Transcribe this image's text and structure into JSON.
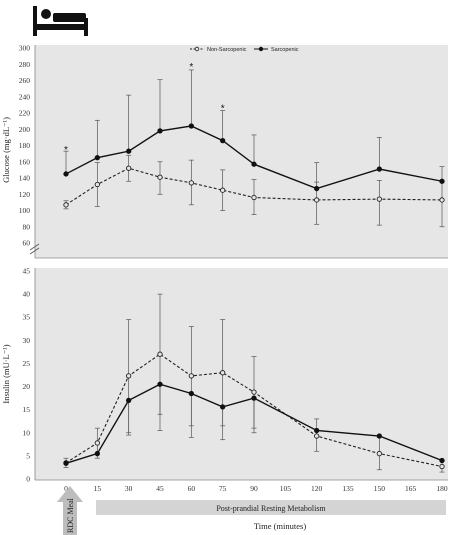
{
  "chart_data": [
    {
      "type": "line",
      "ylabel": "Glucose (mg·dL⁻¹)",
      "xlabel": "",
      "ylim": [
        60,
        300
      ],
      "yticks": [
        60,
        80,
        100,
        120,
        140,
        160,
        180,
        200,
        220,
        240,
        260,
        280,
        300
      ],
      "axis_break": true,
      "x": [
        0,
        15,
        30,
        45,
        60,
        75,
        90,
        120,
        150,
        180
      ],
      "legend_position": "top-center",
      "grid": false,
      "series": [
        {
          "name": "Non-Sarcopenic",
          "style": "dashed",
          "marker": "open-circle",
          "color": "#222222",
          "values": [
            107,
            132,
            152,
            141,
            134,
            125,
            116,
            113,
            114,
            113
          ],
          "error_upper": [
            112,
            159,
            168,
            160,
            162,
            150,
            138,
            135,
            137,
            135
          ],
          "error_lower": [
            102,
            105,
            136,
            120,
            107,
            100,
            95,
            83,
            82,
            80
          ]
        },
        {
          "name": "Sarcopenic",
          "style": "solid",
          "marker": "filled-circle",
          "color": "#111111",
          "values": [
            145,
            165,
            173,
            198,
            204,
            186,
            157,
            127,
            151,
            136
          ],
          "error_upper": [
            173,
            211,
            242,
            261,
            273,
            223,
            193,
            159,
            190,
            154
          ],
          "error_lower": [
            null,
            null,
            null,
            null,
            null,
            null,
            null,
            null,
            null,
            null
          ]
        }
      ],
      "annotations": [
        {
          "x": 0,
          "y": 176,
          "text": "*"
        },
        {
          "x": 60,
          "y": 278,
          "text": "*"
        },
        {
          "x": 75,
          "y": 227,
          "text": "*"
        }
      ]
    },
    {
      "type": "line",
      "ylabel": "Insulin (mU·L⁻¹)",
      "xlabel": "Time (minutes)",
      "ylim": [
        0,
        45
      ],
      "yticks": [
        0,
        5,
        10,
        15,
        20,
        25,
        30,
        35,
        40,
        45
      ],
      "xticks": [
        0,
        15,
        30,
        45,
        60,
        75,
        90,
        105,
        120,
        135,
        150,
        165,
        180
      ],
      "x": [
        0,
        15,
        30,
        45,
        60,
        75,
        90,
        120,
        150,
        180
      ],
      "grid": false,
      "series": [
        {
          "name": "Non-Sarcopenic",
          "style": "dashed",
          "marker": "open-circle",
          "color": "#222222",
          "values": [
            3.5,
            7.8,
            22.3,
            27,
            22.3,
            23,
            18.8,
            9.3,
            5.5,
            2.7
          ],
          "error_upper": [
            4.5,
            11,
            34.5,
            40,
            33,
            34.5,
            26.5,
            13,
            9,
            4
          ],
          "error_lower": [
            2.5,
            4.5,
            10,
            14,
            11.5,
            11.5,
            11,
            6,
            2,
            1.5
          ]
        },
        {
          "name": "Sarcopenic",
          "style": "solid",
          "marker": "filled-circle",
          "color": "#111111",
          "values": [
            3.4,
            5.5,
            17,
            20.5,
            18.5,
            15.6,
            17.5,
            10.5,
            9.3,
            4
          ],
          "error_upper": [
            null,
            null,
            null,
            null,
            null,
            null,
            null,
            null,
            null,
            null
          ],
          "error_lower": [
            null,
            null,
            9.5,
            10.5,
            9,
            8.5,
            10,
            null,
            null,
            null
          ]
        }
      ]
    }
  ],
  "labels": {
    "meal": "RDC Meal",
    "period": "Post-prandial Resting Metabolism"
  },
  "icons": {
    "header": "sleeping-person-bed-icon",
    "meal_arrow": "up-arrow-icon"
  },
  "colors": {
    "panel_bg": "#e6e6e6",
    "bar_bg": "#d4d4d4",
    "arrow": "#bdbdbd"
  }
}
